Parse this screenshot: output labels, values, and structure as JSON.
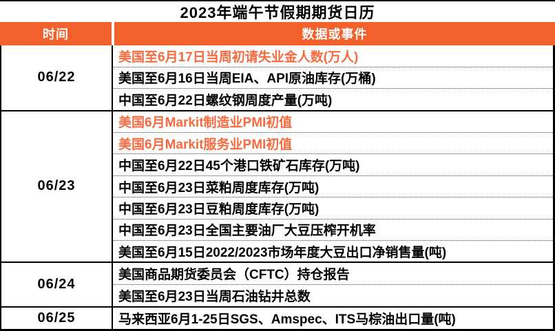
{
  "title": "2023年端午节假期期货日历",
  "colors": {
    "header_bg": "#F2602B",
    "highlight_text": "#F8693D",
    "body_text": "#000000",
    "header_text": "#FFFFFF"
  },
  "header": {
    "time_label": "时间",
    "event_label": "数据或事件"
  },
  "groups": [
    {
      "date": "06/22",
      "events": [
        {
          "text": "美国至6月17日当周初请失业金人数(万人)",
          "highlight": true
        },
        {
          "text": "美国至6月16日当周EIA、API原油库存(万桶)",
          "highlight": false
        },
        {
          "text": "中国至6月22日螺纹钢周度产量(万吨)",
          "highlight": false
        }
      ]
    },
    {
      "date": "06/23",
      "events": [
        {
          "text": "美国6月Markit制造业PMI初值",
          "highlight": true
        },
        {
          "text": "美国6月Markit服务业PMI初值",
          "highlight": true
        },
        {
          "text": "中国至6月22日45个港口铁矿石库存(万吨)",
          "highlight": false
        },
        {
          "text": "中国至6月23日菜粕周度库存(万吨)",
          "highlight": false
        },
        {
          "text": "中国至6月23日豆粕周度库存(万吨)",
          "highlight": false
        },
        {
          "text": "中国至6月23日全国主要油厂大豆压榨开机率",
          "highlight": false
        },
        {
          "text": "美国至6月15日2022/2023市场年度大豆出口净销售量(吨)",
          "highlight": false
        }
      ]
    },
    {
      "date": "06/24",
      "events": [
        {
          "text": "美国商品期货委员会（CFTC）持仓报告",
          "highlight": false
        },
        {
          "text": "美国至6月23日当周石油钻井总数",
          "highlight": false
        }
      ]
    },
    {
      "date": "06/25",
      "events": [
        {
          "text": "马来西亚6月1-25日SGS、Amspec、ITS马棕油出口量(吨)",
          "highlight": false
        }
      ]
    }
  ]
}
